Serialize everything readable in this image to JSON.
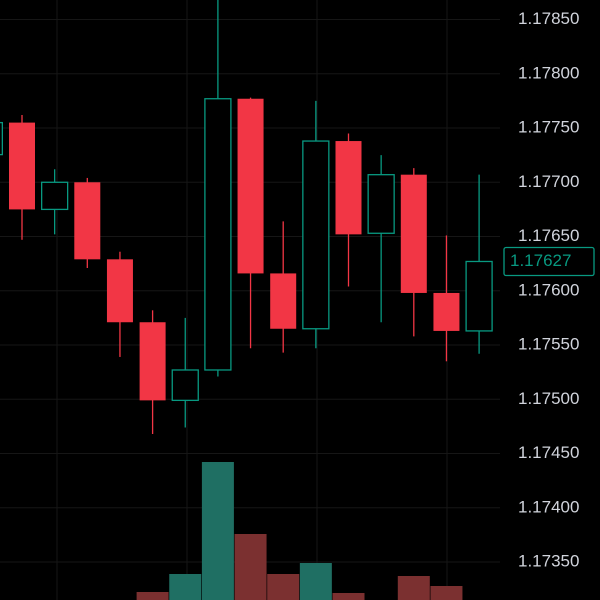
{
  "chart_data": {
    "type": "candlestick",
    "open": [
      1.177255,
      1.17755,
      1.17675,
      1.177,
      1.17629,
      1.17571,
      1.17499,
      1.17527,
      1.17777,
      1.17616,
      1.17565,
      1.17738,
      1.17653,
      1.17707,
      1.17598,
      1.17563
    ],
    "high": [
      1.1776,
      1.17762,
      1.17712,
      1.17704,
      1.17636,
      1.17582,
      1.17575,
      1.1787,
      1.17778,
      1.17664,
      1.17775,
      1.17745,
      1.17725,
      1.17713,
      1.17651,
      1.17707
    ],
    "low": [
      1.1772,
      1.17647,
      1.17652,
      1.17621,
      1.17539,
      1.17468,
      1.17474,
      1.17521,
      1.17547,
      1.17543,
      1.17547,
      1.17604,
      1.17571,
      1.17558,
      1.17535,
      1.17542
    ],
    "close": [
      1.17755,
      1.17675,
      1.177,
      1.17629,
      1.17571,
      1.17499,
      1.17527,
      1.17777,
      1.17616,
      1.17565,
      1.17738,
      1.17652,
      1.17707,
      1.17598,
      1.17563,
      1.17627
    ],
    "volume": [
      null,
      null,
      null,
      null,
      null,
      8,
      26,
      138,
      66,
      26,
      37,
      7,
      null,
      24,
      14,
      null
    ],
    "up_color": "#089981",
    "down_color": "#f23645",
    "up_volume_color": "#1f6f63",
    "down_volume_color": "#7b3030",
    "last_price": 1.17627,
    "ylim": [
      1.17315,
      1.17868
    ],
    "yticks": [
      {
        "value": 1.1735,
        "label": "1.17350"
      },
      {
        "value": 1.174,
        "label": "1.17400"
      },
      {
        "value": 1.1745,
        "label": "1.17450"
      },
      {
        "value": 1.175,
        "label": "1.17500"
      },
      {
        "value": 1.1755,
        "label": "1.17550"
      },
      {
        "value": 1.176,
        "label": "1.17600"
      },
      {
        "value": 1.1765,
        "label": "1.17650"
      },
      {
        "value": 1.177,
        "label": "1.17700"
      },
      {
        "value": 1.1775,
        "label": "1.17750"
      },
      {
        "value": 1.178,
        "label": "1.17800"
      },
      {
        "value": 1.1785,
        "label": "1.17850"
      }
    ],
    "grid": true
  }
}
